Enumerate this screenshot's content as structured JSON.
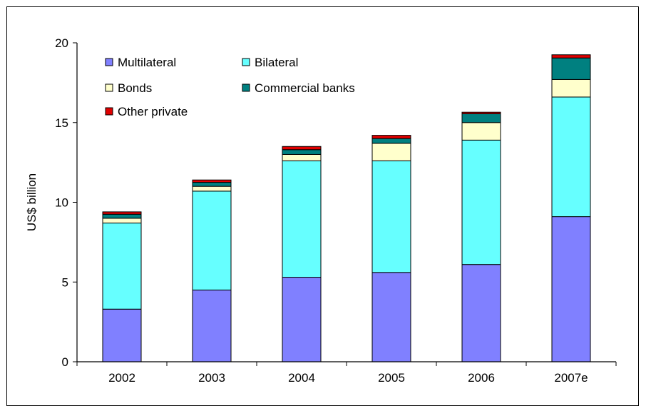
{
  "chart_data": {
    "type": "bar",
    "stacked": true,
    "categories": [
      "2002",
      "2003",
      "2004",
      "2005",
      "2006",
      "2007e"
    ],
    "ylabel": "US$ billion",
    "xlabel": "",
    "title": "",
    "ylim": [
      0,
      20
    ],
    "yticks": [
      0,
      5,
      10,
      15,
      20
    ],
    "grid": false,
    "legend_position": "top-left",
    "series": [
      {
        "name": "Multilateral",
        "color": "#8080ff",
        "values": [
          3.3,
          4.5,
          5.3,
          5.6,
          6.1,
          9.1
        ]
      },
      {
        "name": "Bilateral",
        "color": "#66ffff",
        "values": [
          5.4,
          6.2,
          7.3,
          7.0,
          7.8,
          7.5
        ]
      },
      {
        "name": "Bonds",
        "color": "#ffffcc",
        "values": [
          0.3,
          0.3,
          0.4,
          1.1,
          1.1,
          1.1
        ]
      },
      {
        "name": "Commercial banks",
        "color": "#008080",
        "values": [
          0.25,
          0.25,
          0.3,
          0.3,
          0.55,
          1.35
        ]
      },
      {
        "name": "Other private",
        "color": "#e00000",
        "values": [
          0.15,
          0.15,
          0.2,
          0.2,
          0.1,
          0.2
        ]
      }
    ]
  }
}
